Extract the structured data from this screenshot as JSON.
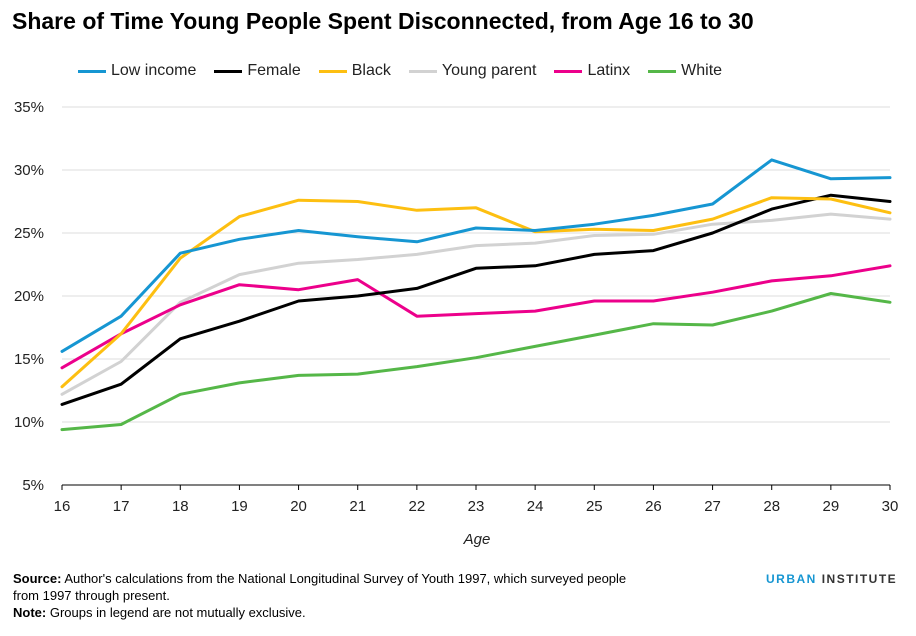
{
  "header": {
    "title": "Share of Time Young People Spent Disconnected, from Age 16 to 30"
  },
  "legend": [
    {
      "name": "Low income",
      "color": "#1696d2"
    },
    {
      "name": "Female",
      "color": "#000000"
    },
    {
      "name": "Black",
      "color": "#fdbf11"
    },
    {
      "name": "Young parent",
      "color": "#d2d2d2"
    },
    {
      "name": "Latinx",
      "color": "#ec008b"
    },
    {
      "name": "White",
      "color": "#55b748"
    }
  ],
  "chart_data": {
    "type": "line",
    "title": "Share of Time Young People Spent Disconnected, from Age 16 to 30",
    "xlabel": "Age",
    "ylabel": "",
    "x": [
      16,
      17,
      18,
      19,
      20,
      21,
      22,
      23,
      24,
      25,
      26,
      27,
      28,
      29,
      30
    ],
    "xlim": [
      16,
      30
    ],
    "ylim": [
      5,
      35
    ],
    "yticks": [
      "5%",
      "10%",
      "15%",
      "20%",
      "25%",
      "30%",
      "35%"
    ],
    "legend_position": "top",
    "grid": "horizontal",
    "series": [
      {
        "name": "Low income",
        "color": "#1696d2",
        "values": [
          15.6,
          18.4,
          23.4,
          24.5,
          25.2,
          24.7,
          24.3,
          25.4,
          25.2,
          25.7,
          26.4,
          27.3,
          30.8,
          29.3,
          29.4
        ]
      },
      {
        "name": "Female",
        "color": "#000000",
        "values": [
          11.4,
          13.0,
          16.6,
          18.0,
          19.6,
          20.0,
          20.6,
          22.2,
          22.4,
          23.3,
          23.6,
          25.0,
          26.9,
          28.0,
          27.5
        ]
      },
      {
        "name": "Black",
        "color": "#fdbf11",
        "values": [
          12.8,
          17.0,
          23.0,
          26.3,
          27.6,
          27.5,
          26.8,
          27.0,
          25.1,
          25.3,
          25.2,
          26.1,
          27.8,
          27.7,
          26.6
        ]
      },
      {
        "name": "Young parent",
        "color": "#d2d2d2",
        "values": [
          12.2,
          14.8,
          19.5,
          21.7,
          22.6,
          22.9,
          23.3,
          24.0,
          24.2,
          24.8,
          24.9,
          25.7,
          26.0,
          26.5,
          26.1
        ]
      },
      {
        "name": "Latinx",
        "color": "#ec008b",
        "values": [
          14.3,
          17.0,
          19.3,
          20.9,
          20.5,
          21.3,
          18.4,
          18.6,
          18.8,
          19.6,
          19.6,
          20.3,
          21.2,
          21.6,
          22.4
        ]
      },
      {
        "name": "White",
        "color": "#55b748",
        "values": [
          9.4,
          9.8,
          12.2,
          13.1,
          13.7,
          13.8,
          14.4,
          15.1,
          16.0,
          16.9,
          17.8,
          17.7,
          18.8,
          20.2,
          19.5
        ]
      }
    ]
  },
  "footer": {
    "source_label": "Source:",
    "source_text": "Author's calculations from the National Longitudinal Survey of Youth 1997, which surveyed people from 1997 through present.",
    "note_label": "Note:",
    "note_text": "Groups in legend are not mutually exclusive."
  },
  "brand": {
    "urban": "URBAN",
    "institute": "INSTITUTE"
  }
}
